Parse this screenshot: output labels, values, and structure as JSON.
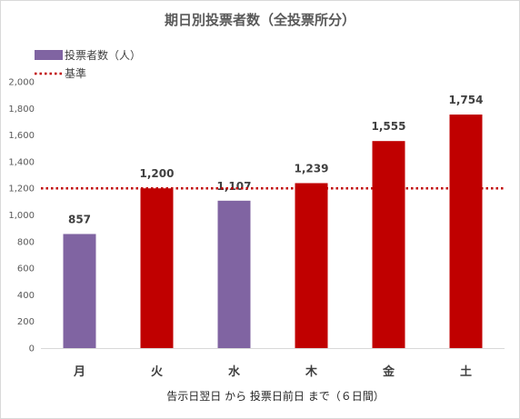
{
  "chart_data": {
    "type": "bar",
    "title": "期日別投票者数（全投票所分）",
    "xlabel": "告示日翌日 から 投票日前日 まで（６日間）",
    "ylabel": "",
    "categories": [
      "月",
      "火",
      "水",
      "木",
      "金",
      "土"
    ],
    "series": [
      {
        "name": "投票者数（人）",
        "values": [
          857,
          1200,
          1107,
          1239,
          1555,
          1754
        ],
        "value_labels": [
          "857",
          "1,200",
          "1,107",
          "1,239",
          "1,555",
          "1,754"
        ],
        "colors": [
          "#8064a2",
          "#c00000",
          "#8064a2",
          "#c00000",
          "#c00000",
          "#c00000"
        ]
      }
    ],
    "reference_line": {
      "name": "基準",
      "value": 1200,
      "color": "#c00000",
      "style": "dotted"
    },
    "ylim": [
      0,
      2000
    ],
    "yticks": [
      0,
      200,
      400,
      600,
      800,
      1000,
      1200,
      1400,
      1600,
      1800,
      2000
    ],
    "ytick_labels": [
      "0",
      "200",
      "400",
      "600",
      "800",
      "1,000",
      "1,200",
      "1,400",
      "1,600",
      "1,800",
      "2,000"
    ],
    "grid": false,
    "legend_position": "top-left",
    "legend_swatch_color": "#8064a2"
  }
}
